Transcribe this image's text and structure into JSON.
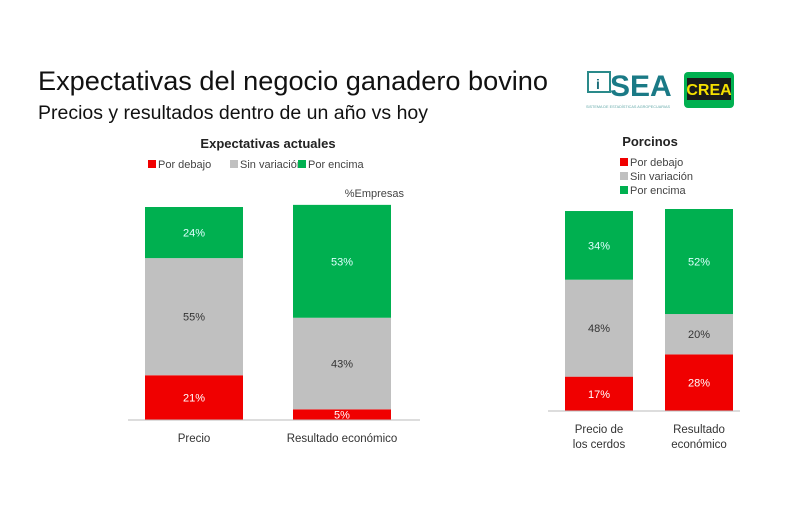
{
  "header": {
    "title": "Expectativas del negocio ganadero bovino",
    "subtitle": "Precios y resultados dentro de un año vs hoy"
  },
  "logos": {
    "sea": "SEA",
    "sea_tagline": "SISTEMA DE ESTADÍSTICAS AGROPECUARIAS",
    "crea": "CREA"
  },
  "colors": {
    "red": "#f00000",
    "gray": "#c0c0c0",
    "green": "#00b050"
  },
  "chart_data": [
    {
      "type": "bar",
      "stacked": true,
      "title": "Expectativas actuales",
      "ylabel": "%Empresas",
      "ylim": [
        0,
        100
      ],
      "legend": [
        "Por debajo",
        "Sin variación",
        "Por encima"
      ],
      "legend_position": "top",
      "categories": [
        "Precio",
        "Resultado económico"
      ],
      "series": [
        {
          "name": "Por debajo",
          "values": [
            21,
            5
          ]
        },
        {
          "name": "Sin variación",
          "values": [
            55,
            43
          ]
        },
        {
          "name": "Por encima",
          "values": [
            24,
            53
          ]
        }
      ]
    },
    {
      "type": "bar",
      "stacked": true,
      "title": "Porcinos",
      "ylim": [
        0,
        100
      ],
      "legend": [
        "Por debajo",
        "Sin variación",
        "Por encima"
      ],
      "legend_position": "top",
      "categories": [
        "Precio de los cerdos",
        "Resultado económico"
      ],
      "series": [
        {
          "name": "Por debajo",
          "values": [
            17,
            28
          ]
        },
        {
          "name": "Sin variación",
          "values": [
            48,
            20
          ]
        },
        {
          "name": "Por encima",
          "values": [
            34,
            52
          ]
        }
      ]
    }
  ]
}
